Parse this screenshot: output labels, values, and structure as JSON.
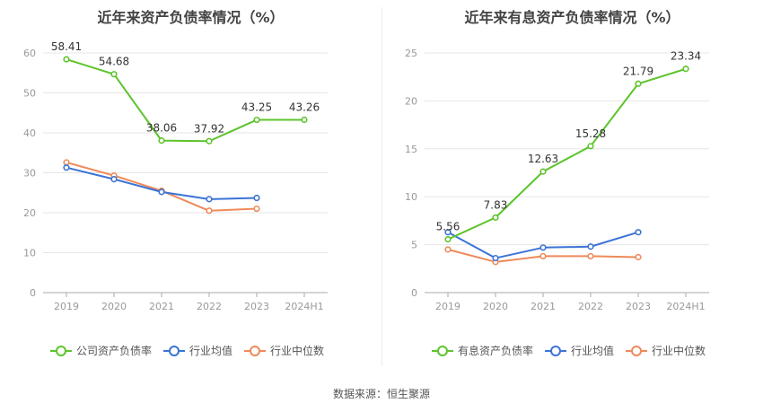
{
  "colors": {
    "company": "#5cc42b",
    "industry_avg": "#3b73d6",
    "industry_median": "#ef8a5a",
    "axis": "#999999",
    "grid": "#e6e6e6"
  },
  "source_label": "数据来源：恒生聚源",
  "chart_data": [
    {
      "type": "line",
      "title": "近年来资产负债率情况（%）",
      "categories": [
        "2019",
        "2020",
        "2021",
        "2022",
        "2023",
        "2024H1"
      ],
      "ylim": [
        0,
        60
      ],
      "yticks": [
        0,
        10,
        20,
        30,
        40,
        50,
        60
      ],
      "grid": true,
      "legend_position": "bottom",
      "series": [
        {
          "name": "公司资产负债率",
          "values": [
            58.41,
            54.68,
            38.06,
            37.92,
            43.25,
            43.26
          ],
          "labels": [
            "58.41",
            "54.68",
            "38.06",
            "37.92",
            "43.25",
            "43.26"
          ]
        },
        {
          "name": "行业均值",
          "values": [
            31.3,
            28.4,
            25.2,
            23.4,
            23.7,
            null
          ]
        },
        {
          "name": "行业中位数",
          "values": [
            32.6,
            29.3,
            25.5,
            20.5,
            21.0,
            null
          ]
        }
      ]
    },
    {
      "type": "line",
      "title": "近年来有息资产负债率情况（%）",
      "categories": [
        "2019",
        "2020",
        "2021",
        "2022",
        "2023",
        "2024H1"
      ],
      "ylim": [
        0,
        25
      ],
      "yticks": [
        0,
        5,
        10,
        15,
        20,
        25
      ],
      "grid": true,
      "legend_position": "bottom",
      "series": [
        {
          "name": "有息资产负债率",
          "values": [
            5.56,
            7.83,
            12.63,
            15.28,
            21.79,
            23.34
          ],
          "labels": [
            "5.56",
            "7.83",
            "12.63",
            "15.28",
            "21.79",
            "23.34"
          ]
        },
        {
          "name": "行业均值",
          "values": [
            6.3,
            3.6,
            4.7,
            4.8,
            6.3,
            null
          ]
        },
        {
          "name": "行业中位数",
          "values": [
            4.5,
            3.2,
            3.8,
            3.8,
            3.7,
            null
          ]
        }
      ]
    }
  ]
}
